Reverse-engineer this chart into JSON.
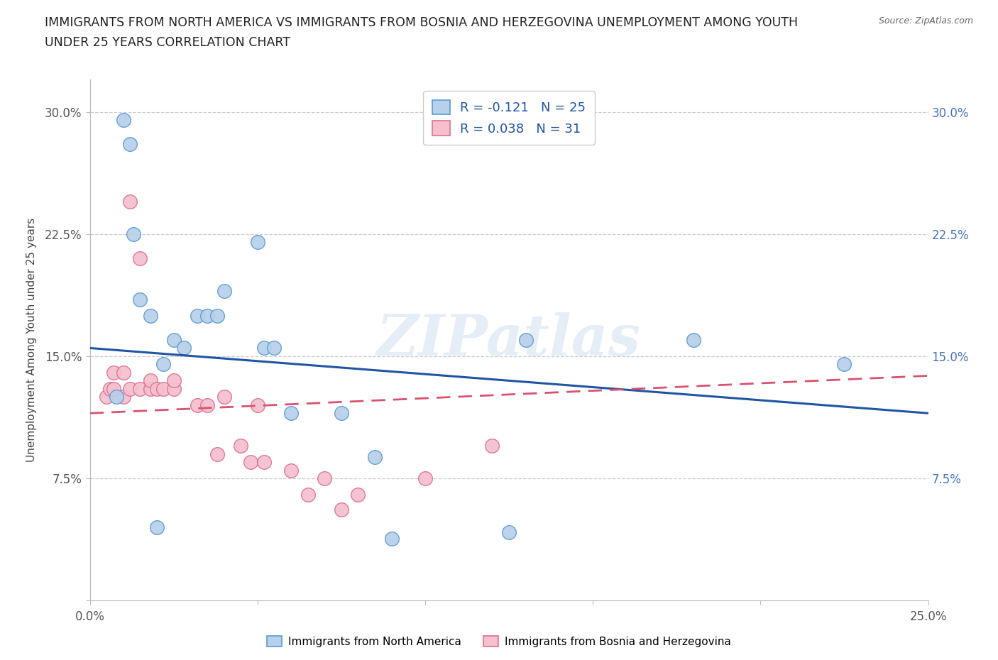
{
  "title_line1": "IMMIGRANTS FROM NORTH AMERICA VS IMMIGRANTS FROM BOSNIA AND HERZEGOVINA UNEMPLOYMENT AMONG YOUTH",
  "title_line2": "UNDER 25 YEARS CORRELATION CHART",
  "source": "Source: ZipAtlas.com",
  "ylabel": "Unemployment Among Youth under 25 years",
  "xlim": [
    0.0,
    0.25
  ],
  "ylim": [
    0.0,
    0.32
  ],
  "xticks": [
    0.0,
    0.05,
    0.1,
    0.15,
    0.2,
    0.25
  ],
  "yticks": [
    0.075,
    0.15,
    0.225,
    0.3
  ],
  "ytick_labels": [
    "7.5%",
    "15.0%",
    "22.5%",
    "30.0%"
  ],
  "xtick_labels": [
    "0.0%",
    "",
    "",
    "",
    "",
    "25.0%"
  ],
  "blue_R": -0.121,
  "blue_N": 25,
  "pink_R": 0.038,
  "pink_N": 31,
  "blue_color": "#b8d0ea",
  "blue_edge": "#5b9bd5",
  "pink_color": "#f5bfce",
  "pink_edge": "#e07090",
  "blue_line_color": "#2055a5",
  "pink_line_color": "#d9526e",
  "blue_scatter_x": [
    0.008,
    0.01,
    0.012,
    0.013,
    0.015,
    0.018,
    0.02,
    0.022,
    0.025,
    0.028,
    0.032,
    0.035,
    0.038,
    0.04,
    0.05,
    0.052,
    0.055,
    0.06,
    0.075,
    0.085,
    0.09,
    0.125,
    0.13,
    0.18,
    0.225
  ],
  "blue_scatter_y": [
    0.125,
    0.295,
    0.28,
    0.225,
    0.185,
    0.175,
    0.045,
    0.145,
    0.16,
    0.155,
    0.175,
    0.175,
    0.175,
    0.19,
    0.22,
    0.155,
    0.155,
    0.115,
    0.115,
    0.088,
    0.038,
    0.042,
    0.16,
    0.16,
    0.145
  ],
  "pink_scatter_x": [
    0.005,
    0.006,
    0.007,
    0.007,
    0.01,
    0.01,
    0.012,
    0.012,
    0.015,
    0.015,
    0.018,
    0.018,
    0.02,
    0.022,
    0.025,
    0.025,
    0.032,
    0.035,
    0.038,
    0.04,
    0.045,
    0.048,
    0.05,
    0.052,
    0.06,
    0.065,
    0.07,
    0.075,
    0.08,
    0.1,
    0.12
  ],
  "pink_scatter_y": [
    0.125,
    0.13,
    0.13,
    0.14,
    0.125,
    0.14,
    0.13,
    0.245,
    0.13,
    0.21,
    0.13,
    0.135,
    0.13,
    0.13,
    0.13,
    0.135,
    0.12,
    0.12,
    0.09,
    0.125,
    0.095,
    0.085,
    0.12,
    0.085,
    0.08,
    0.065,
    0.075,
    0.056,
    0.065,
    0.075,
    0.095
  ],
  "watermark": "ZIPatlas",
  "background_color": "#ffffff",
  "grid_color": "#cccccc"
}
